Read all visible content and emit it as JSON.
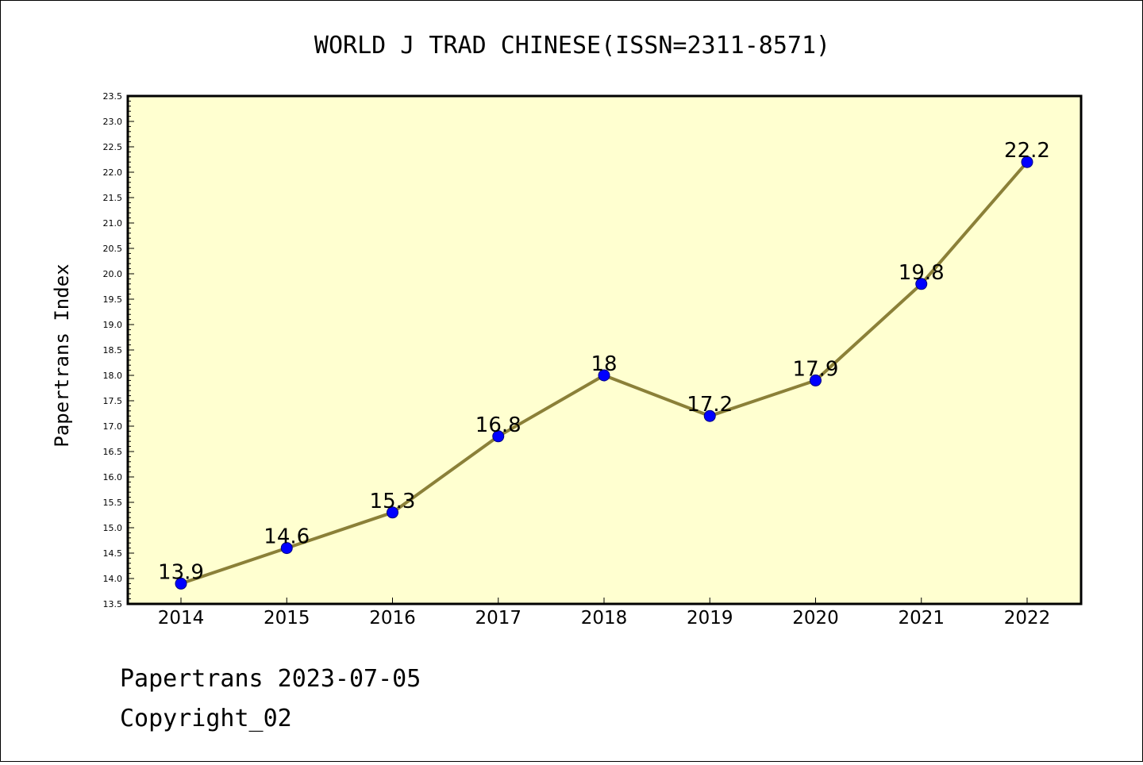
{
  "chart_data": {
    "type": "line",
    "title": "WORLD J TRAD CHINESE(ISSN=2311-8571)",
    "ylabel": "Papertrans Index",
    "xlabel": "",
    "categories": [
      "2014",
      "2015",
      "2016",
      "2017",
      "2018",
      "2019",
      "2020",
      "2021",
      "2022"
    ],
    "values": [
      13.9,
      14.6,
      15.3,
      16.8,
      18.0,
      17.2,
      17.9,
      19.8,
      22.2
    ],
    "data_labels": [
      "13.9",
      "14.6",
      "15.3",
      "16.8",
      "18",
      "17.2",
      "17.9",
      "19.8",
      "22.2"
    ],
    "ylim": [
      13.5,
      23.5
    ],
    "yticks": [
      "13.5",
      "14.0",
      "14.5",
      "15.0",
      "15.5",
      "16.0",
      "16.5",
      "17.0",
      "17.5",
      "18.0",
      "18.5",
      "19.0",
      "19.5",
      "20.0",
      "20.5",
      "21.0",
      "21.5",
      "22.0",
      "22.5",
      "23.0",
      "23.5"
    ],
    "grid": false,
    "colors": {
      "plot_bg": "#ffffd0",
      "line": "#8b8038",
      "marker": "#0000ff",
      "marker_edge": "#000080"
    }
  },
  "footer": {
    "line1": "Papertrans 2023-07-05",
    "line2": "Copyright_02"
  }
}
